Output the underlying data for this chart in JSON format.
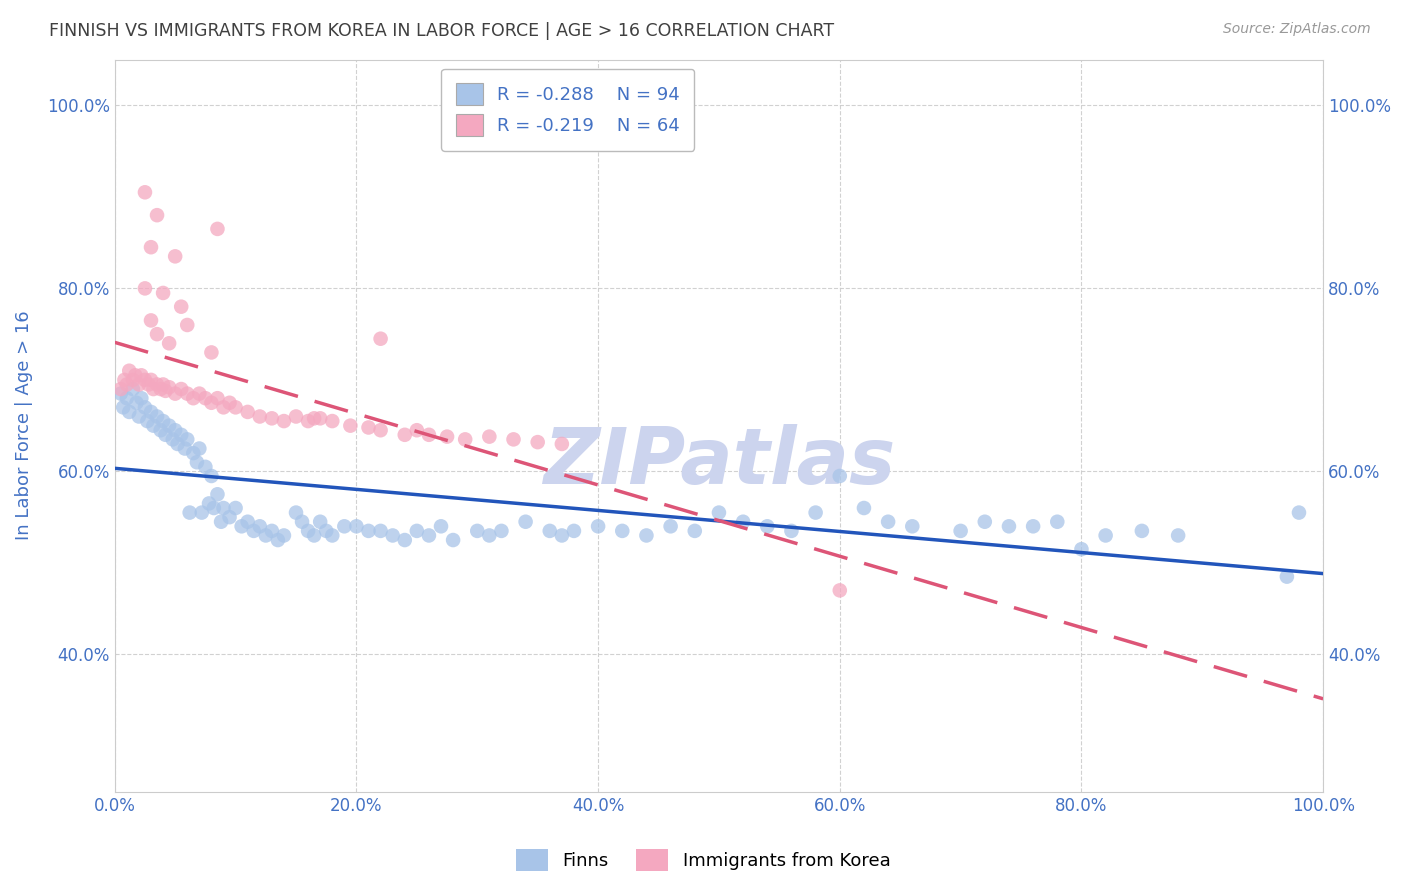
{
  "title": "FINNISH VS IMMIGRANTS FROM KOREA IN LABOR FORCE | AGE > 16 CORRELATION CHART",
  "source": "Source: ZipAtlas.com",
  "ylabel": "In Labor Force | Age > 16",
  "xlim": [
    0.0,
    1.0
  ],
  "ylim": [
    0.25,
    1.05
  ],
  "xticks": [
    0.0,
    0.2,
    0.4,
    0.6,
    0.8,
    1.0
  ],
  "yticks": [
    0.4,
    0.6,
    0.8,
    1.0
  ],
  "xtick_labels": [
    "0.0%",
    "20.0%",
    "40.0%",
    "60.0%",
    "80.0%",
    "100.0%"
  ],
  "ytick_labels": [
    "40.0%",
    "60.0%",
    "80.0%",
    "100.0%"
  ],
  "finns_color": "#a8c4e8",
  "korea_color": "#f4a8c0",
  "finns_line_color": "#2255bb",
  "korea_line_color": "#dd5577",
  "R_finns": "-0.288",
  "N_finns": "94",
  "R_korea": "-0.219",
  "N_korea": "64",
  "finns_x": [
    0.005,
    0.007,
    0.01,
    0.012,
    0.015,
    0.018,
    0.02,
    0.022,
    0.025,
    0.027,
    0.03,
    0.032,
    0.035,
    0.038,
    0.04,
    0.042,
    0.045,
    0.048,
    0.05,
    0.052,
    0.055,
    0.058,
    0.06,
    0.062,
    0.065,
    0.068,
    0.07,
    0.072,
    0.075,
    0.078,
    0.08,
    0.082,
    0.085,
    0.088,
    0.09,
    0.095,
    0.1,
    0.105,
    0.11,
    0.115,
    0.12,
    0.125,
    0.13,
    0.135,
    0.14,
    0.15,
    0.155,
    0.16,
    0.165,
    0.17,
    0.175,
    0.18,
    0.19,
    0.2,
    0.21,
    0.22,
    0.23,
    0.24,
    0.25,
    0.26,
    0.27,
    0.28,
    0.3,
    0.31,
    0.32,
    0.34,
    0.36,
    0.37,
    0.38,
    0.4,
    0.42,
    0.44,
    0.46,
    0.48,
    0.5,
    0.52,
    0.54,
    0.56,
    0.58,
    0.6,
    0.62,
    0.64,
    0.66,
    0.7,
    0.72,
    0.74,
    0.76,
    0.78,
    0.8,
    0.82,
    0.85,
    0.88,
    0.97,
    0.98
  ],
  "finns_y": [
    0.685,
    0.67,
    0.68,
    0.665,
    0.69,
    0.675,
    0.66,
    0.68,
    0.67,
    0.655,
    0.665,
    0.65,
    0.66,
    0.645,
    0.655,
    0.64,
    0.65,
    0.635,
    0.645,
    0.63,
    0.64,
    0.625,
    0.635,
    0.555,
    0.62,
    0.61,
    0.625,
    0.555,
    0.605,
    0.565,
    0.595,
    0.56,
    0.575,
    0.545,
    0.56,
    0.55,
    0.56,
    0.54,
    0.545,
    0.535,
    0.54,
    0.53,
    0.535,
    0.525,
    0.53,
    0.555,
    0.545,
    0.535,
    0.53,
    0.545,
    0.535,
    0.53,
    0.54,
    0.54,
    0.535,
    0.535,
    0.53,
    0.525,
    0.535,
    0.53,
    0.54,
    0.525,
    0.535,
    0.53,
    0.535,
    0.545,
    0.535,
    0.53,
    0.535,
    0.54,
    0.535,
    0.53,
    0.54,
    0.535,
    0.555,
    0.545,
    0.54,
    0.535,
    0.555,
    0.595,
    0.56,
    0.545,
    0.54,
    0.535,
    0.545,
    0.54,
    0.54,
    0.545,
    0.515,
    0.53,
    0.535,
    0.53,
    0.485,
    0.555
  ],
  "korea_x": [
    0.005,
    0.008,
    0.01,
    0.012,
    0.015,
    0.017,
    0.02,
    0.022,
    0.025,
    0.028,
    0.03,
    0.032,
    0.035,
    0.038,
    0.04,
    0.042,
    0.045,
    0.05,
    0.055,
    0.06,
    0.065,
    0.07,
    0.075,
    0.08,
    0.085,
    0.09,
    0.095,
    0.1,
    0.11,
    0.12,
    0.13,
    0.14,
    0.15,
    0.16,
    0.17,
    0.18,
    0.195,
    0.21,
    0.22,
    0.24,
    0.25,
    0.26,
    0.275,
    0.29,
    0.31,
    0.33,
    0.35,
    0.37,
    0.165,
    0.085,
    0.035,
    0.06,
    0.03,
    0.025,
    0.04,
    0.05,
    0.035,
    0.025,
    0.03,
    0.6,
    0.22,
    0.08,
    0.055,
    0.045
  ],
  "korea_y": [
    0.69,
    0.7,
    0.695,
    0.71,
    0.7,
    0.705,
    0.695,
    0.705,
    0.7,
    0.695,
    0.7,
    0.69,
    0.695,
    0.69,
    0.695,
    0.688,
    0.692,
    0.685,
    0.69,
    0.685,
    0.68,
    0.685,
    0.68,
    0.675,
    0.68,
    0.67,
    0.675,
    0.67,
    0.665,
    0.66,
    0.658,
    0.655,
    0.66,
    0.655,
    0.658,
    0.655,
    0.65,
    0.648,
    0.645,
    0.64,
    0.645,
    0.64,
    0.638,
    0.635,
    0.638,
    0.635,
    0.632,
    0.63,
    0.658,
    0.865,
    0.88,
    0.76,
    0.845,
    0.905,
    0.795,
    0.835,
    0.75,
    0.8,
    0.765,
    0.47,
    0.745,
    0.73,
    0.78,
    0.74
  ],
  "background_color": "#ffffff",
  "grid_color": "#cccccc",
  "title_color": "#404040",
  "axis_label_color": "#4472c4",
  "tick_color": "#4472c4",
  "watermark_text": "ZIPatlas",
  "watermark_color": "#ccd4ee",
  "legend_finns_label": "Finns",
  "legend_korea_label": "Immigrants from Korea"
}
